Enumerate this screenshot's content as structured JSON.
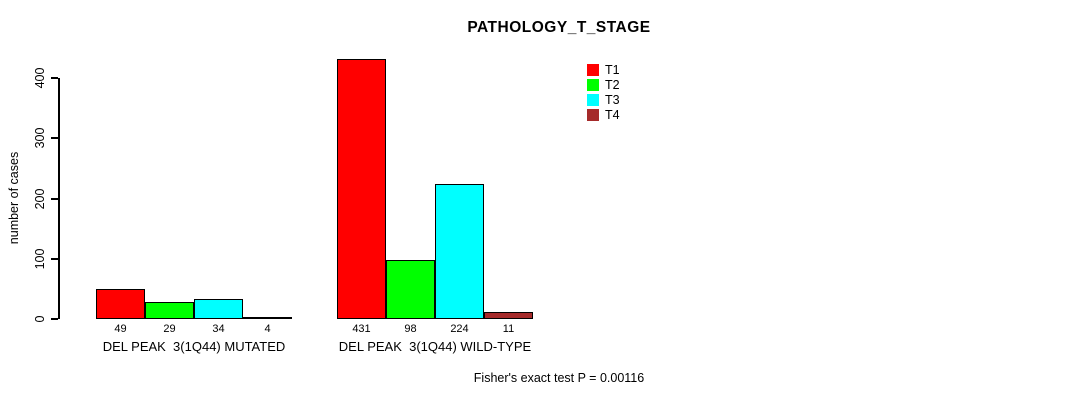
{
  "chart_data": {
    "type": "bar",
    "title": "PATHOLOGY_T_STAGE",
    "xlabel": "",
    "ylabel": "number of cases",
    "ylim": [
      0,
      400
    ],
    "yticks": [
      0,
      100,
      200,
      300,
      400
    ],
    "grid": false,
    "legend_position": "top-right",
    "categories": [
      "DEL PEAK  3(1Q44) MUTATED",
      "DEL PEAK  3(1Q44) WILD-TYPE"
    ],
    "series": [
      {
        "name": "T1",
        "color": "#ff0000",
        "values": [
          49,
          431
        ]
      },
      {
        "name": "T2",
        "color": "#00ff00",
        "values": [
          29,
          98
        ]
      },
      {
        "name": "T3",
        "color": "#00ffff",
        "values": [
          34,
          224
        ]
      },
      {
        "name": "T4",
        "color": "#a52a2a",
        "values": [
          4,
          11
        ]
      }
    ],
    "bar_border_color": "#000000",
    "annotation": "Fisher's exact test P = 0.00116"
  }
}
